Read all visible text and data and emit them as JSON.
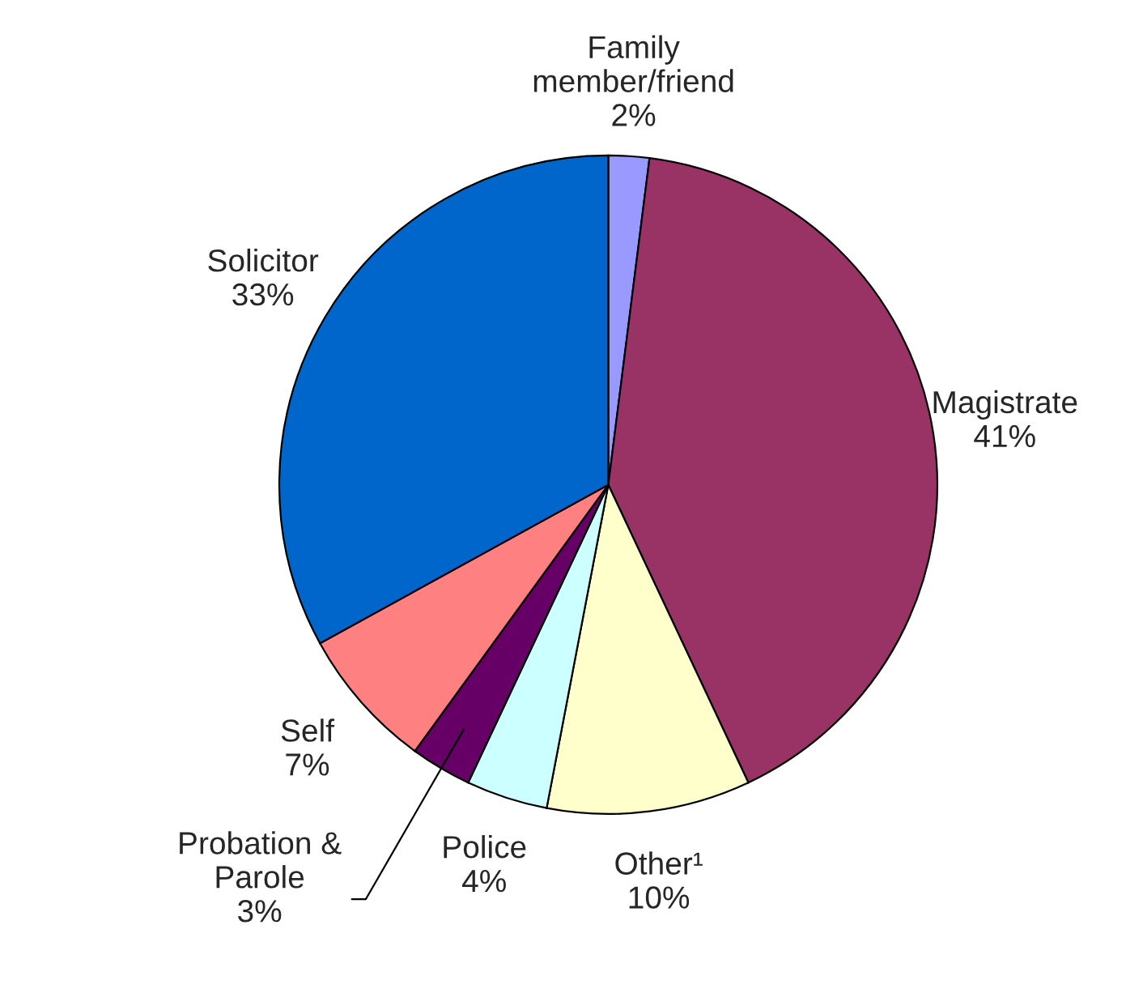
{
  "chart_data": {
    "type": "pie",
    "categories": [
      "Family\nmember/friend",
      "Magistrate",
      "Other¹",
      "Police",
      "Probation &\nParole",
      "Self",
      "Solicitor"
    ],
    "values": [
      2,
      41,
      10,
      4,
      3,
      7,
      33
    ],
    "colors": [
      "#9999ff",
      "#993366",
      "#ffffcc",
      "#ccffff",
      "#660066",
      "#ff8080",
      "#0066cc"
    ],
    "value_labels": [
      "2%",
      "41%",
      "10%",
      "4%",
      "3%",
      "7%",
      "33%"
    ]
  }
}
